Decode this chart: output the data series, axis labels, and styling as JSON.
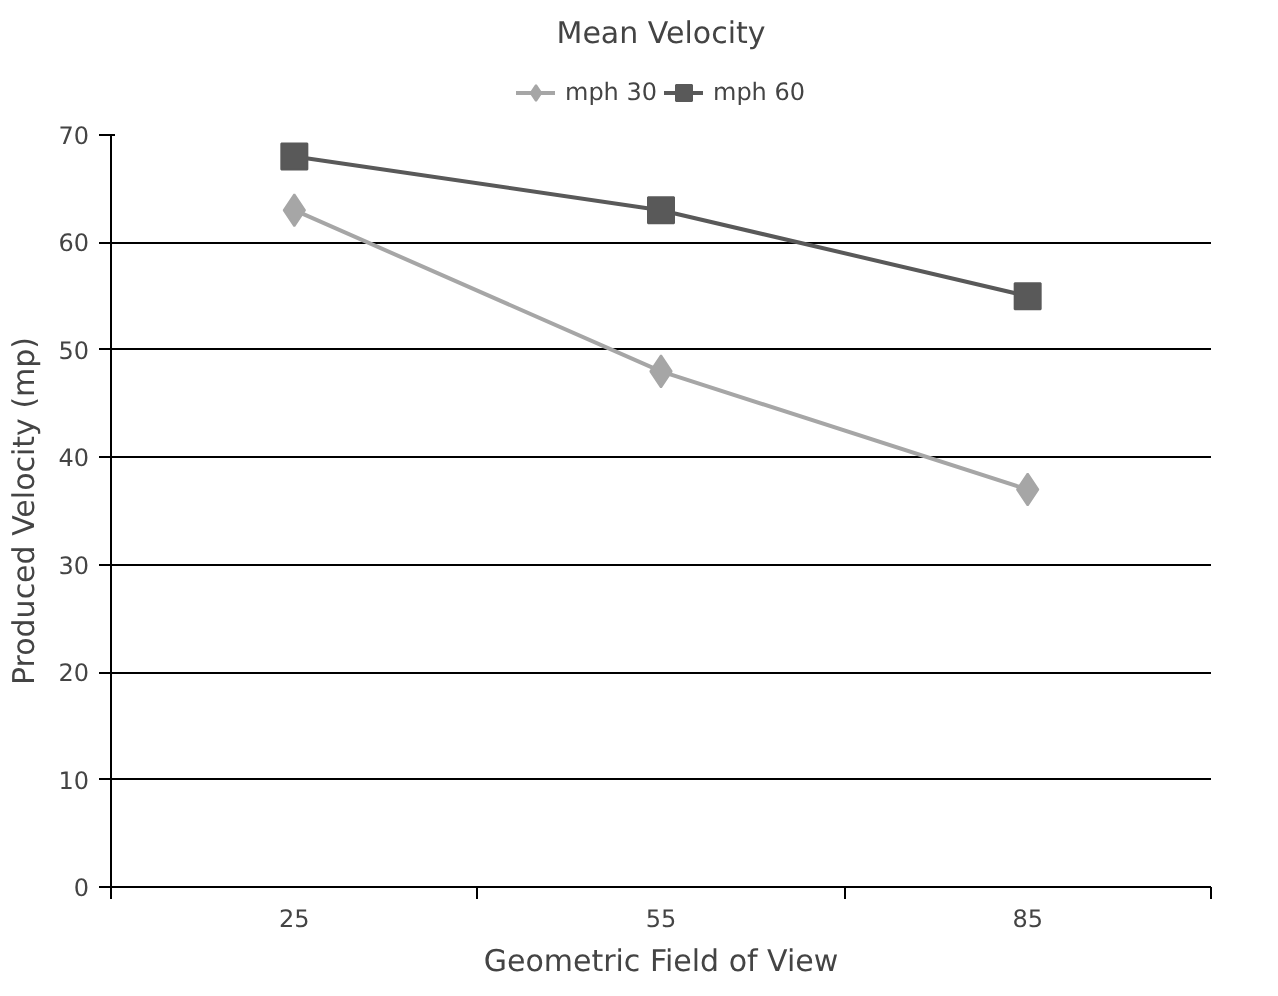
{
  "chart_data": {
    "type": "line",
    "title": "Mean Velocity",
    "xlabel": "Geometric Field of View",
    "ylabel": "Produced Velocity (mp)",
    "categories": [
      "25",
      "55",
      "85"
    ],
    "series": [
      {
        "name": "mph 30",
        "color": "#a6a6a6",
        "marker": "diamond",
        "values": [
          63,
          48,
          37
        ]
      },
      {
        "name": "mph 60",
        "color": "#595959",
        "marker": "square",
        "values": [
          68,
          63,
          55
        ]
      }
    ],
    "ylim": [
      0,
      70
    ],
    "yticks": [
      0,
      10,
      20,
      30,
      40,
      50,
      60,
      70
    ],
    "grid": "y",
    "legend": "top"
  }
}
